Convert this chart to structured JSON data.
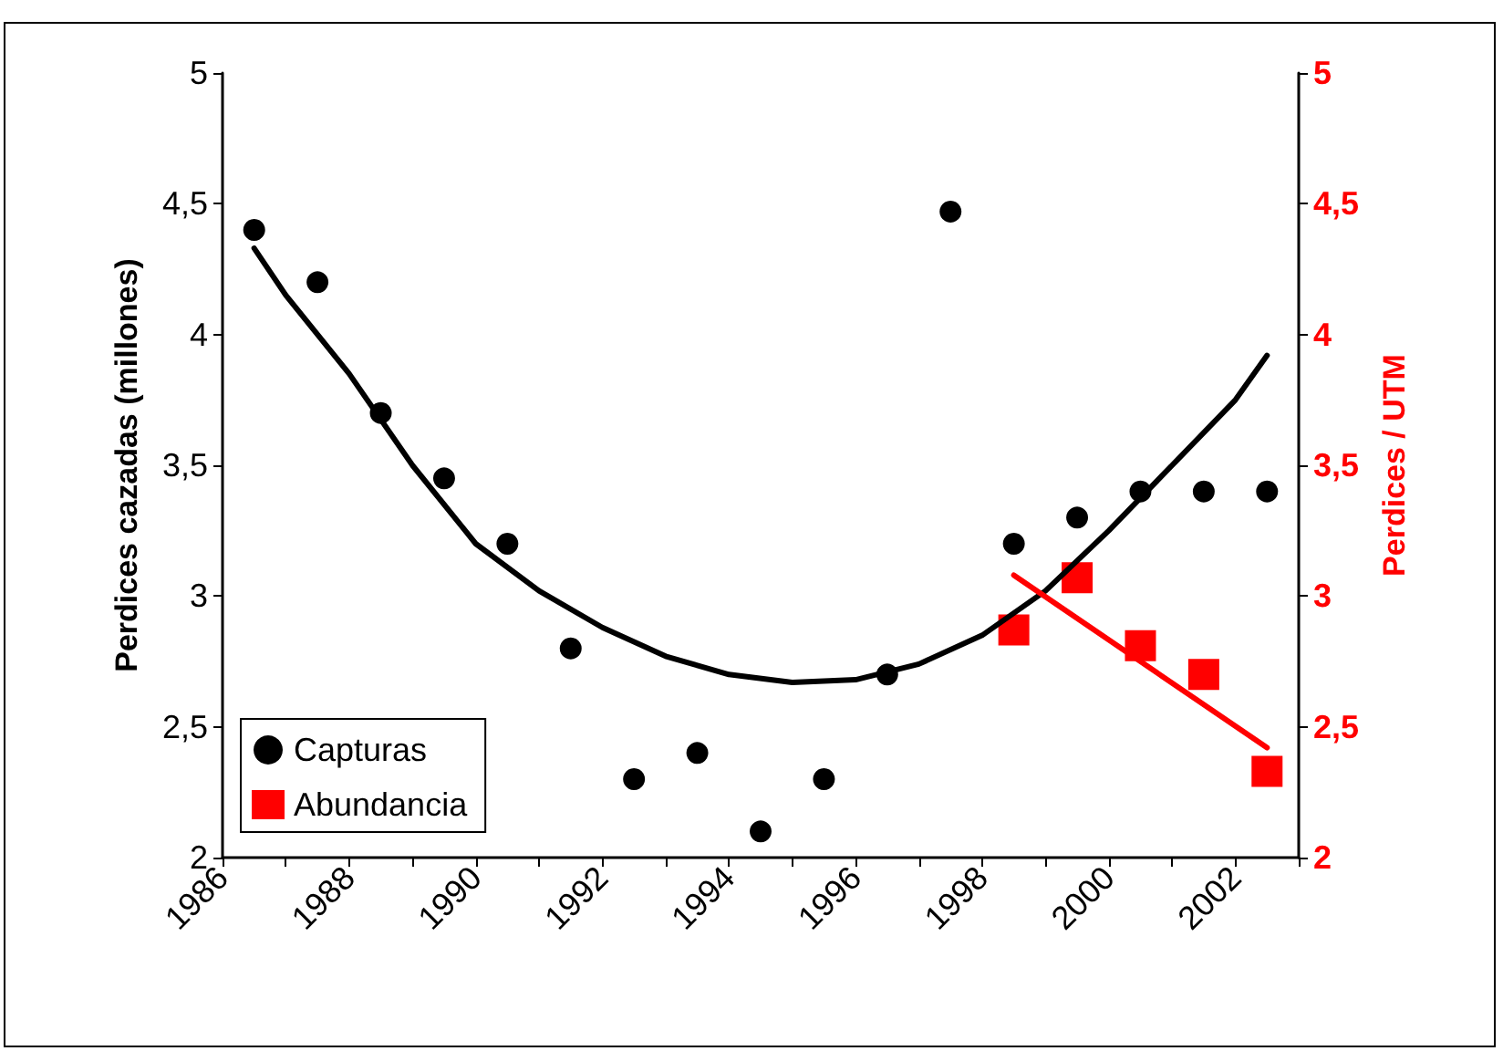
{
  "chart_data": {
    "type": "scatter",
    "xlabel": null,
    "ylabel": "Perdices cazadas (millones)",
    "y2label": "Perdices / UTM",
    "xlim": [
      1986,
      2003
    ],
    "xticks": [
      1986,
      {
        "value": 1987,
        "label": null
      },
      1988,
      {
        "value": 1989,
        "label": null
      },
      1990,
      {
        "value": 1991,
        "label": null
      },
      1992,
      {
        "value": 1993,
        "label": null
      },
      1994,
      {
        "value": 1995,
        "label": null
      },
      1996,
      {
        "value": 1997,
        "label": null
      },
      1998,
      {
        "value": 1999,
        "label": null
      },
      2000,
      {
        "value": 2001,
        "label": null
      },
      2002,
      {
        "value": 2003,
        "label": null
      }
    ],
    "ylim": [
      2,
      5
    ],
    "yticks": [
      2,
      {
        "value": 2.5,
        "label": "2,5"
      },
      3,
      {
        "value": 3.5,
        "label": "3,5"
      },
      4,
      {
        "value": 4.5,
        "label": "4,5"
      },
      5
    ],
    "y2lim": [
      2,
      5
    ],
    "y2ticks": [
      2,
      {
        "value": 2.5,
        "label": "2,5"
      },
      3,
      {
        "value": 3.5,
        "label": "3,5"
      },
      4,
      {
        "value": 4.5,
        "label": "4,5"
      },
      5
    ],
    "grid": false,
    "legend": "bottom left",
    "series": [
      {
        "name": "Capturas",
        "marker": "circle",
        "color": "#000000",
        "x": [
          1986.5,
          1987.5,
          1988.5,
          1989.5,
          1990.5,
          1991.5,
          1992.5,
          1993.5,
          1994.5,
          1995.5,
          1996.5,
          1997.5,
          1998.5,
          1999.5,
          2000.5,
          2001.5,
          2002.5
        ],
        "values": [
          4.4,
          4.2,
          3.7,
          3.45,
          3.2,
          2.8,
          2.3,
          2.4,
          2.1,
          2.3,
          2.7,
          4.47,
          3.2,
          3.3,
          3.4,
          3.4,
          3.4
        ]
      },
      {
        "type": "line",
        "marker": "none",
        "color": "#000000",
        "x": [
          1986.5,
          1987,
          1988,
          1989,
          1990,
          1991,
          1992,
          1993,
          1994,
          1995,
          1996,
          1997,
          1998,
          1999,
          2000,
          2001,
          2002,
          2002.5
        ],
        "values": [
          4.33,
          4.15,
          3.85,
          3.5,
          3.2,
          3.02,
          2.88,
          2.77,
          2.7,
          2.67,
          2.68,
          2.74,
          2.85,
          3.02,
          3.25,
          3.5,
          3.75,
          3.92
        ]
      },
      {
        "name": "Abundancia",
        "marker": "square",
        "axis": "y2",
        "color": "#ff0000",
        "x": [
          1998.5,
          1999.5,
          2000.5,
          2001.5,
          2002.5
        ],
        "values": [
          2.87,
          3.07,
          2.81,
          2.7,
          2.33
        ]
      },
      {
        "type": "line",
        "marker": "none",
        "axis": "y2",
        "color": "#ff0000",
        "x": [
          1998.5,
          2002.5
        ],
        "values": [
          3.08,
          2.42
        ]
      }
    ]
  }
}
